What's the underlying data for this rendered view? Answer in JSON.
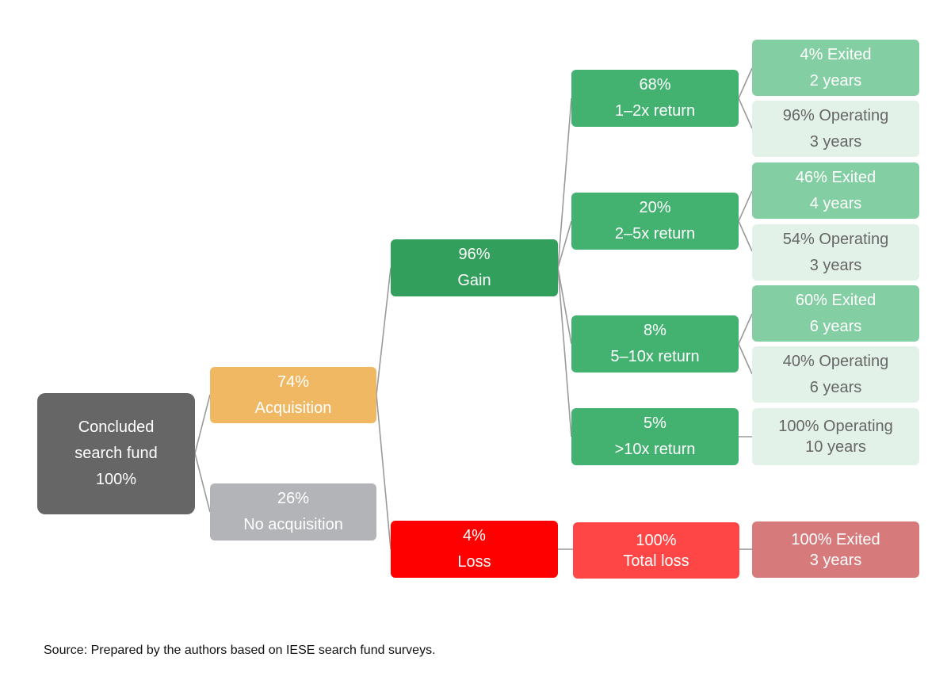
{
  "colors": {
    "root": "#666666",
    "acquisition": "#F0B862",
    "no_acquisition": "#B3B4B7",
    "gain": "#339F5D",
    "return_level": "#43B271",
    "exited": "#84CEA3",
    "operating": "#E3F2E8",
    "operating_text": "#666666",
    "loss": "#FF0000",
    "total_loss": "#FF4646",
    "loss_exited": "#D77A7C",
    "connector": "#9A9A9A"
  },
  "nodes": {
    "root": {
      "lines": [
        "Concluded",
        "search fund",
        "100%"
      ]
    },
    "acquisition": {
      "lines": [
        "74%",
        "Acquisition"
      ]
    },
    "no_acquisition": {
      "lines": [
        "26%",
        "No acquisition"
      ]
    },
    "gain": {
      "lines": [
        "96%",
        "Gain"
      ]
    },
    "loss": {
      "lines": [
        "4%",
        "Loss"
      ]
    },
    "return_1_2x": {
      "lines": [
        "68%",
        "1–2x return"
      ]
    },
    "return_2_5x": {
      "lines": [
        "20%",
        "2–5x return"
      ]
    },
    "return_5_10x": {
      "lines": [
        "8%",
        "5–10x return"
      ]
    },
    "return_10x": {
      "lines": [
        "5%",
        ">10x return"
      ]
    },
    "total_loss": {
      "lines": [
        "100%",
        "Total loss"
      ]
    },
    "exited_1_2x": {
      "lines": [
        "4% Exited",
        "2 years"
      ]
    },
    "operating_1_2x": {
      "lines": [
        "96% Operating",
        "3 years"
      ]
    },
    "exited_2_5x": {
      "lines": [
        "46% Exited",
        "4 years"
      ]
    },
    "operating_2_5x": {
      "lines": [
        "54% Operating",
        "3 years"
      ]
    },
    "exited_5_10x": {
      "lines": [
        "60% Exited",
        "6 years"
      ]
    },
    "operating_5_10x": {
      "lines": [
        "40% Operating",
        "6 years"
      ]
    },
    "operating_10x": {
      "lines": [
        "100% Operating",
        "10 years"
      ]
    },
    "exited_loss": {
      "lines": [
        "100% Exited",
        "3 years"
      ]
    }
  },
  "source": "Source: Prepared by the authors based on IESE search fund surveys."
}
